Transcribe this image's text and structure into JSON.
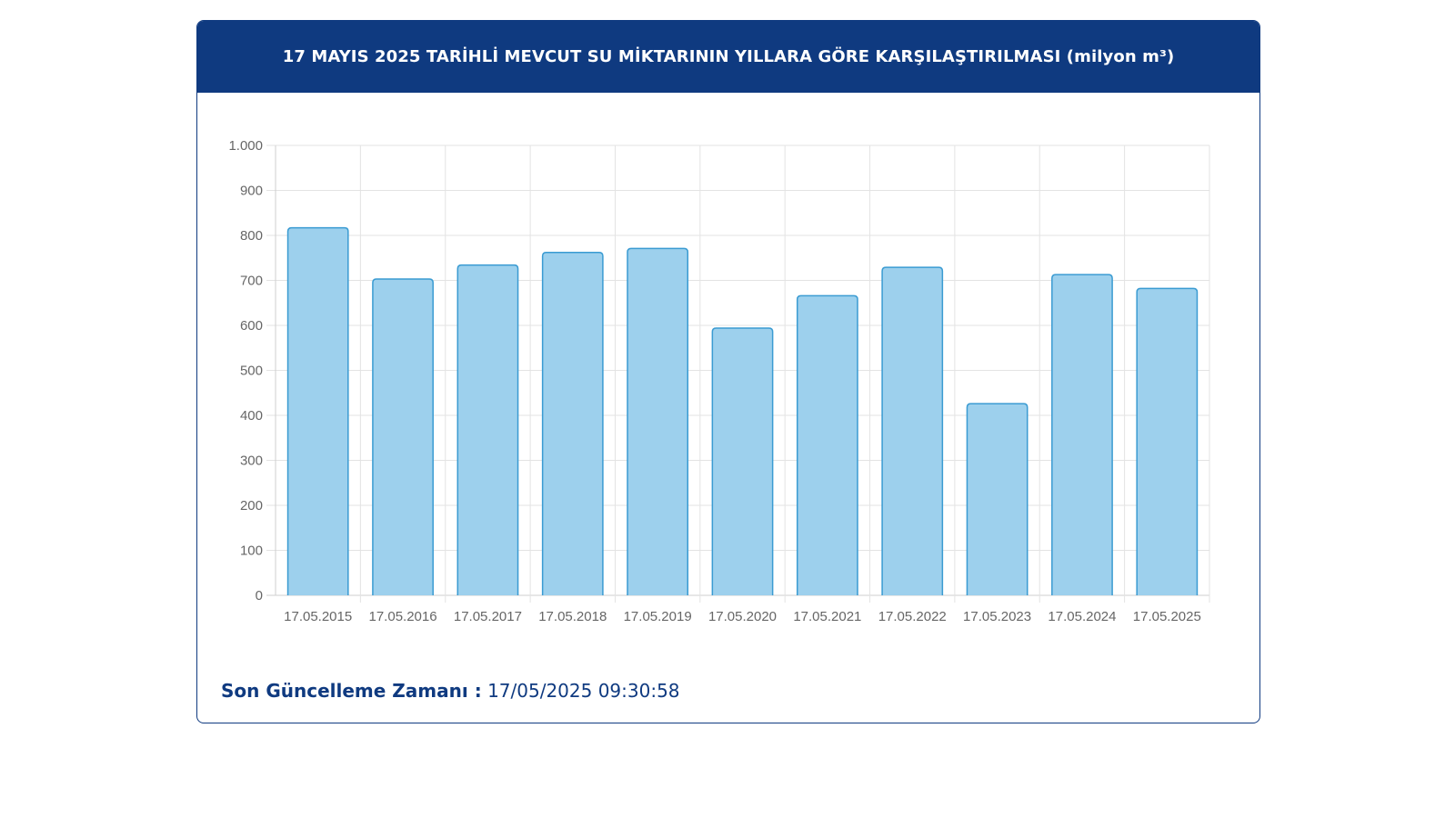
{
  "header": {
    "title": "17 MAYIS 2025 TARİHLİ MEVCUT SU MİKTARININ YILLARA GÖRE KARŞILAŞTIRILMASI (milyon m³)"
  },
  "footer": {
    "label": "Son Güncelleme Zamanı :",
    "value": "17/05/2025 09:30:58"
  },
  "colors": {
    "header_bg": "#0f3a80",
    "bar_fill": "#9dd0ed",
    "bar_stroke": "#3a9bd2"
  },
  "chart_data": {
    "type": "bar",
    "title": "17 MAYIS 2025 TARİHLİ MEVCUT SU MİKTARININ YILLARA GÖRE KARŞILAŞTIRILMASI (milyon m³)",
    "xlabel": "",
    "ylabel": "",
    "ylim": [
      0,
      1000
    ],
    "yticks": [
      0,
      100,
      200,
      300,
      400,
      500,
      600,
      700,
      800,
      900,
      1000
    ],
    "ytick_labels": [
      "0",
      "100",
      "200",
      "300",
      "400",
      "500",
      "600",
      "700",
      "800",
      "900",
      "1.000"
    ],
    "categories": [
      "17.05.2015",
      "17.05.2016",
      "17.05.2017",
      "17.05.2018",
      "17.05.2019",
      "17.05.2020",
      "17.05.2021",
      "17.05.2022",
      "17.05.2023",
      "17.05.2024",
      "17.05.2025"
    ],
    "values": [
      817,
      703,
      734,
      762,
      771,
      594,
      666,
      729,
      426,
      713,
      682
    ],
    "grid": true,
    "legend": "none"
  }
}
